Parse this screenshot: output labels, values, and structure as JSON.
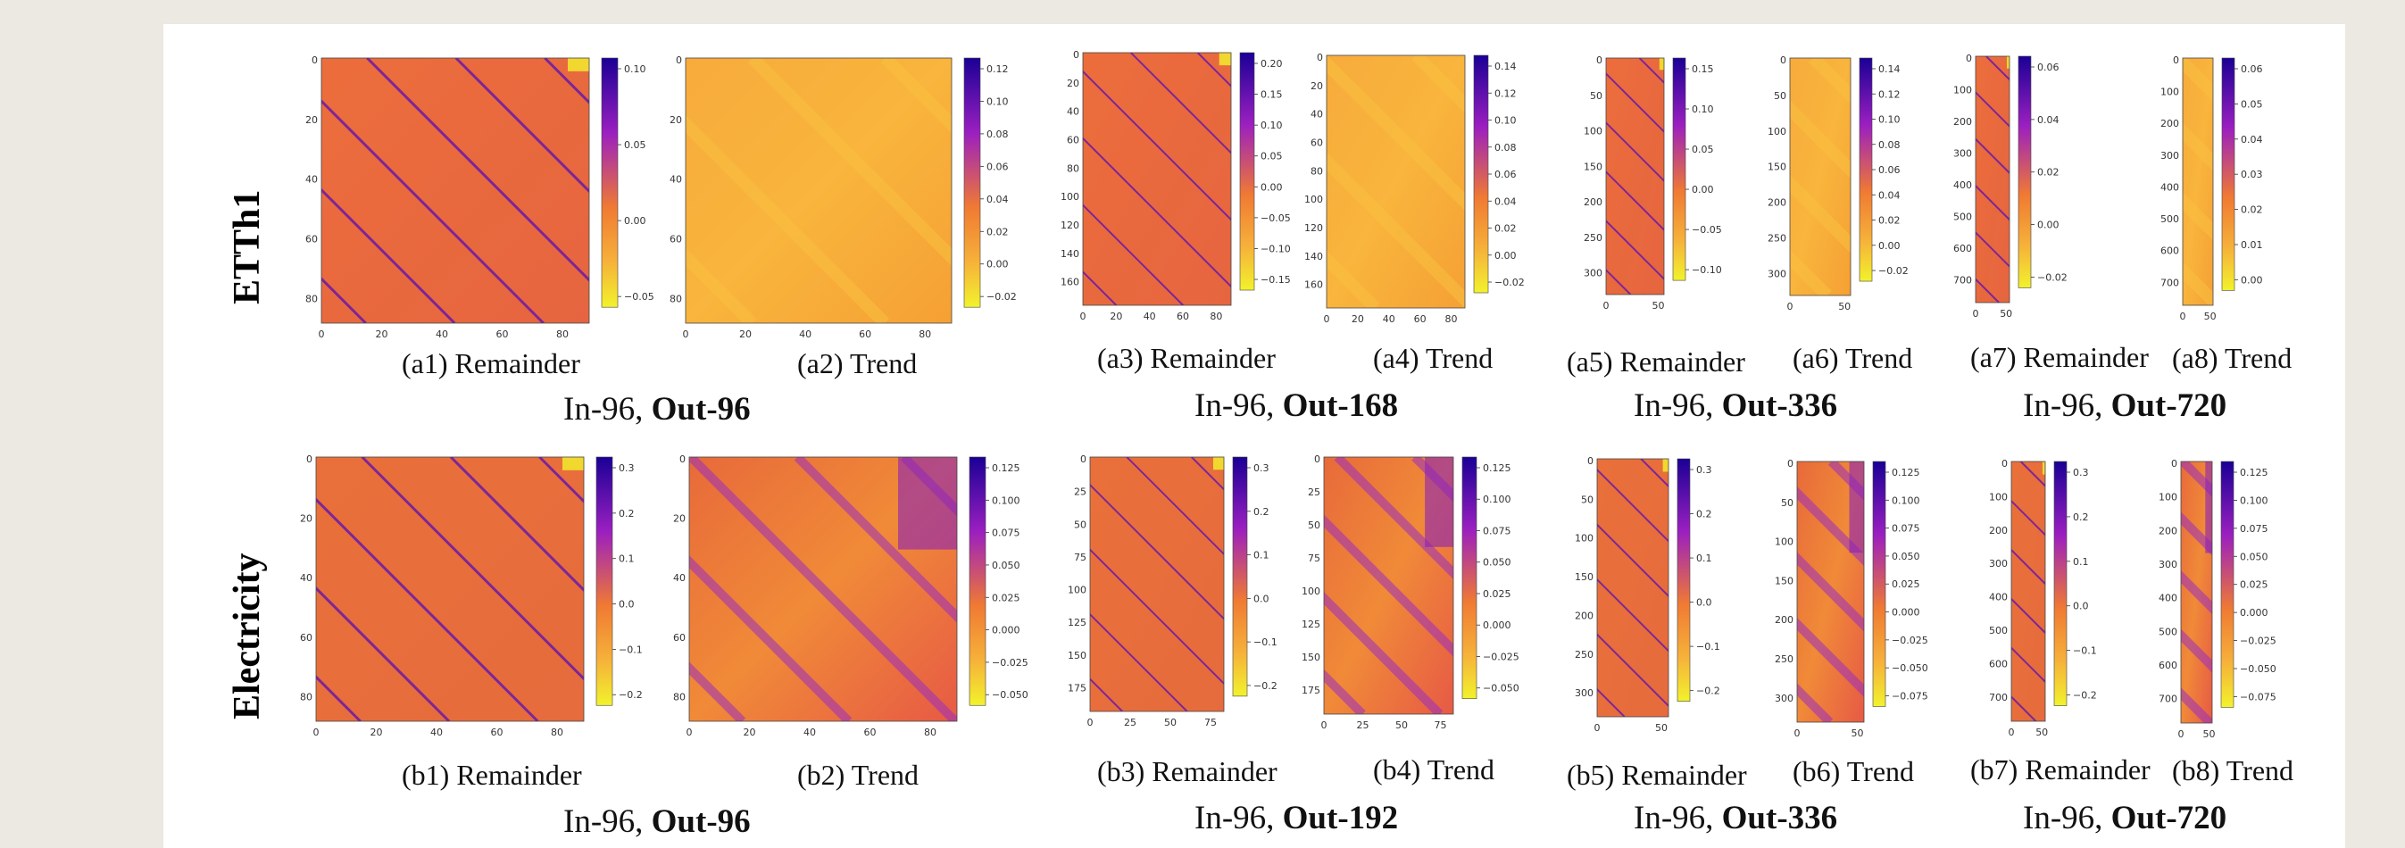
{
  "rows": [
    {
      "label": "ETTh1",
      "panels": [
        {
          "caption": "(a1) Remainder",
          "kind": "remainder",
          "cbar": [
            "0.10",
            "0.05",
            "0.00",
            "−0.05"
          ],
          "yt": [
            "0",
            "20",
            "40",
            "60",
            "80"
          ],
          "xt": [
            "0",
            "20",
            "40",
            "60",
            "80"
          ]
        },
        {
          "caption": "(a2) Trend",
          "kind": "trend",
          "cbar": [
            "0.12",
            "0.10",
            "0.08",
            "0.06",
            "0.04",
            "0.02",
            "0.00",
            "−0.02"
          ],
          "yt": [
            "0",
            "20",
            "40",
            "60",
            "80"
          ],
          "xt": [
            "0",
            "20",
            "40",
            "60",
            "80"
          ]
        },
        {
          "caption": "(a3) Remainder",
          "kind": "remainder",
          "cbar": [
            "0.20",
            "0.15",
            "0.10",
            "0.05",
            "0.00",
            "−0.05",
            "−0.10",
            "−0.15"
          ],
          "yt": [
            "0",
            "20",
            "40",
            "60",
            "80",
            "100",
            "120",
            "140",
            "160"
          ],
          "xt": [
            "0",
            "20",
            "40",
            "60",
            "80"
          ]
        },
        {
          "caption": "(a4) Trend",
          "kind": "trend",
          "cbar": [
            "0.14",
            "0.12",
            "0.10",
            "0.08",
            "0.06",
            "0.04",
            "0.02",
            "0.00",
            "−0.02"
          ],
          "yt": [
            "0",
            "20",
            "40",
            "60",
            "80",
            "100",
            "120",
            "140",
            "160"
          ],
          "xt": [
            "0",
            "20",
            "40",
            "60",
            "80"
          ]
        },
        {
          "caption": "(a5) Remainder",
          "kind": "remainder",
          "cbar": [
            "0.15",
            "0.10",
            "0.05",
            "0.00",
            "−0.05",
            "−0.10"
          ],
          "yt": [
            "0",
            "50",
            "100",
            "150",
            "200",
            "250",
            "300"
          ],
          "xt": [
            "0",
            "50"
          ]
        },
        {
          "caption": "(a6) Trend",
          "kind": "trend",
          "cbar": [
            "0.14",
            "0.12",
            "0.10",
            "0.08",
            "0.06",
            "0.04",
            "0.02",
            "0.00",
            "−0.02"
          ],
          "yt": [
            "0",
            "50",
            "100",
            "150",
            "200",
            "250",
            "300"
          ],
          "xt": [
            "0",
            "50"
          ]
        },
        {
          "caption": "(a7) Remainder",
          "kind": "remainder",
          "cbar": [
            "0.06",
            "0.04",
            "0.02",
            "0.00",
            "−0.02"
          ],
          "yt": [
            "0",
            "100",
            "200",
            "300",
            "400",
            "500",
            "600",
            "700"
          ],
          "xt": [
            "0",
            "50"
          ]
        },
        {
          "caption": "(a8) Trend",
          "kind": "trend",
          "cbar": [
            "0.06",
            "0.05",
            "0.04",
            "0.03",
            "0.02",
            "0.01",
            "0.00"
          ],
          "yt": [
            "0",
            "100",
            "200",
            "300",
            "400",
            "500",
            "600",
            "700"
          ],
          "xt": [
            "0",
            "50"
          ]
        }
      ],
      "groups": [
        {
          "prefix": "In-96, ",
          "bold": "Out-96"
        },
        {
          "prefix": "In-96, ",
          "bold": "Out-168"
        },
        {
          "prefix": "In-96, ",
          "bold": "Out-336"
        },
        {
          "prefix": "In-96, ",
          "bold": "Out-720"
        }
      ]
    },
    {
      "label": "Electricity",
      "panels": [
        {
          "caption": "(b1) Remainder",
          "kind": "remainder_e",
          "cbar": [
            "0.3",
            "0.2",
            "0.1",
            "0.0",
            "−0.1",
            "−0.2"
          ],
          "yt": [
            "0",
            "20",
            "40",
            "60",
            "80"
          ],
          "xt": [
            "0",
            "20",
            "40",
            "60",
            "80"
          ]
        },
        {
          "caption": "(b2) Trend",
          "kind": "trend_e",
          "cbar": [
            "0.125",
            "0.100",
            "0.075",
            "0.050",
            "0.025",
            "0.000",
            "−0.025",
            "−0.050"
          ],
          "yt": [
            "0",
            "20",
            "40",
            "60",
            "80"
          ],
          "xt": [
            "0",
            "20",
            "40",
            "60",
            "80"
          ]
        },
        {
          "caption": "(b3) Remainder",
          "kind": "remainder_e",
          "cbar": [
            "0.3",
            "0.2",
            "0.1",
            "0.0",
            "−0.1",
            "−0.2"
          ],
          "yt": [
            "0",
            "25",
            "50",
            "75",
            "100",
            "125",
            "150",
            "175"
          ],
          "xt": [
            "0",
            "25",
            "50",
            "75"
          ]
        },
        {
          "caption": "(b4) Trend",
          "kind": "trend_e",
          "cbar": [
            "0.125",
            "0.100",
            "0.075",
            "0.050",
            "0.025",
            "0.000",
            "−0.025",
            "−0.050"
          ],
          "yt": [
            "0",
            "25",
            "50",
            "75",
            "100",
            "125",
            "150",
            "175"
          ],
          "xt": [
            "0",
            "25",
            "50",
            "75"
          ]
        },
        {
          "caption": "(b5) Remainder",
          "kind": "remainder_e",
          "cbar": [
            "0.3",
            "0.2",
            "0.1",
            "0.0",
            "−0.1",
            "−0.2"
          ],
          "yt": [
            "0",
            "50",
            "100",
            "150",
            "200",
            "250",
            "300"
          ],
          "xt": [
            "0",
            "50"
          ]
        },
        {
          "caption": "(b6) Trend",
          "kind": "trend_e",
          "cbar": [
            "0.125",
            "0.100",
            "0.075",
            "0.050",
            "0.025",
            "0.000",
            "−0.025",
            "−0.050",
            "−0.075"
          ],
          "yt": [
            "0",
            "50",
            "100",
            "150",
            "200",
            "250",
            "300"
          ],
          "xt": [
            "0",
            "50"
          ]
        },
        {
          "caption": "(b7) Remainder",
          "kind": "remainder_e",
          "cbar": [
            "0.3",
            "0.2",
            "0.1",
            "0.0",
            "−0.1",
            "−0.2"
          ],
          "yt": [
            "0",
            "100",
            "200",
            "300",
            "400",
            "500",
            "600",
            "700"
          ],
          "xt": [
            "0",
            "50"
          ]
        },
        {
          "caption": "(b8) Trend",
          "kind": "trend_e",
          "cbar": [
            "0.125",
            "0.100",
            "0.075",
            "0.050",
            "0.025",
            "0.000",
            "−0.025",
            "−0.050",
            "−0.075"
          ],
          "yt": [
            "0",
            "100",
            "200",
            "300",
            "400",
            "500",
            "600",
            "700"
          ],
          "xt": [
            "0",
            "50"
          ]
        }
      ],
      "groups": [
        {
          "prefix": "In-96, ",
          "bold": "Out-96"
        },
        {
          "prefix": "In-96, ",
          "bold": "Out-192"
        },
        {
          "prefix": "In-96, ",
          "bold": "Out-336"
        },
        {
          "prefix": "In-96, ",
          "bold": "Out-720"
        }
      ]
    }
  ],
  "colors": {
    "deep": "#1a0096",
    "purple": "#9b1fc0",
    "orange": "#f07a33",
    "gold": "#f6b23a",
    "yellow": "#f2f22c",
    "rose": "#d4574f",
    "separator": "#707070"
  }
}
